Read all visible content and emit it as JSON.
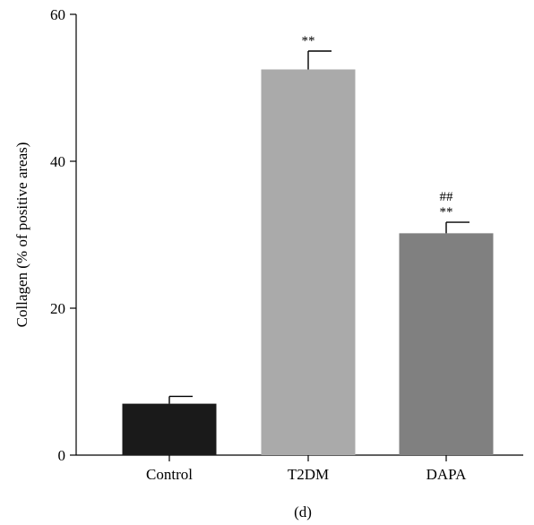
{
  "chart_data": {
    "type": "bar",
    "categories": [
      "Control",
      "T2DM",
      "DAPA"
    ],
    "values": [
      7.0,
      52.5,
      30.2
    ],
    "error": [
      1.0,
      2.5,
      1.5
    ],
    "annotations": [
      [],
      [
        "**"
      ],
      [
        "##",
        "**"
      ]
    ],
    "colors": [
      "#1a1a1a",
      "#aaaaaa",
      "#808080"
    ],
    "ylabel": "Collagen (% of positive areas)",
    "xlabel": "",
    "ylim": [
      0,
      60
    ],
    "yticks": [
      0,
      20,
      40,
      60
    ],
    "grid": false,
    "panel_label": "(d)"
  }
}
